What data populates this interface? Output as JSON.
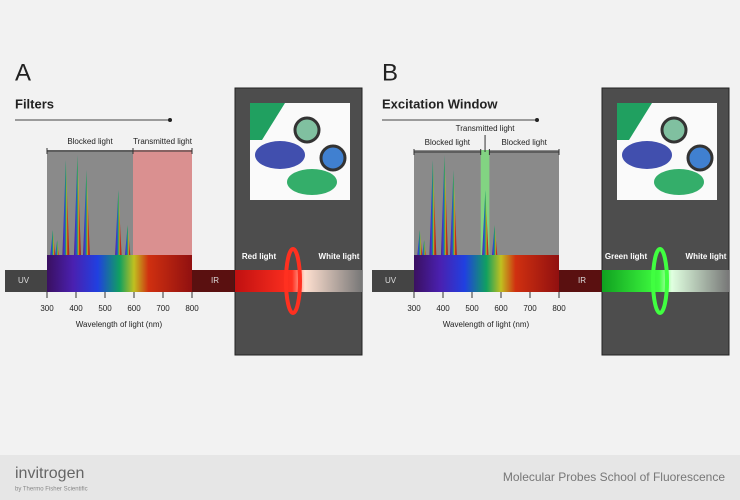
{
  "panels": [
    {
      "letter": "A",
      "title": "Filters",
      "region_labels": [
        "Blocked light",
        "Transmitted light"
      ],
      "uv": "UV",
      "ir": "IR",
      "ticks": [
        300,
        400,
        500,
        600,
        700,
        800
      ],
      "axis_title": "Wavelength of light (nm)",
      "beam_in": "Red light",
      "beam_out": "White light"
    },
    {
      "letter": "B",
      "title": "Excitation Window",
      "region_labels": [
        "Blocked light",
        "Transmitted light",
        "Blocked light"
      ],
      "uv": "UV",
      "ir": "IR",
      "ticks": [
        300,
        400,
        500,
        600,
        700,
        800
      ],
      "axis_title": "Wavelength of light (nm)",
      "beam_in": "Green light",
      "beam_out": "White light"
    }
  ],
  "footer": {
    "brand": "invitrogen",
    "brand_sub": "by Thermo Fisher Scientific",
    "course": "Molecular Probes School of Fluorescence"
  }
}
